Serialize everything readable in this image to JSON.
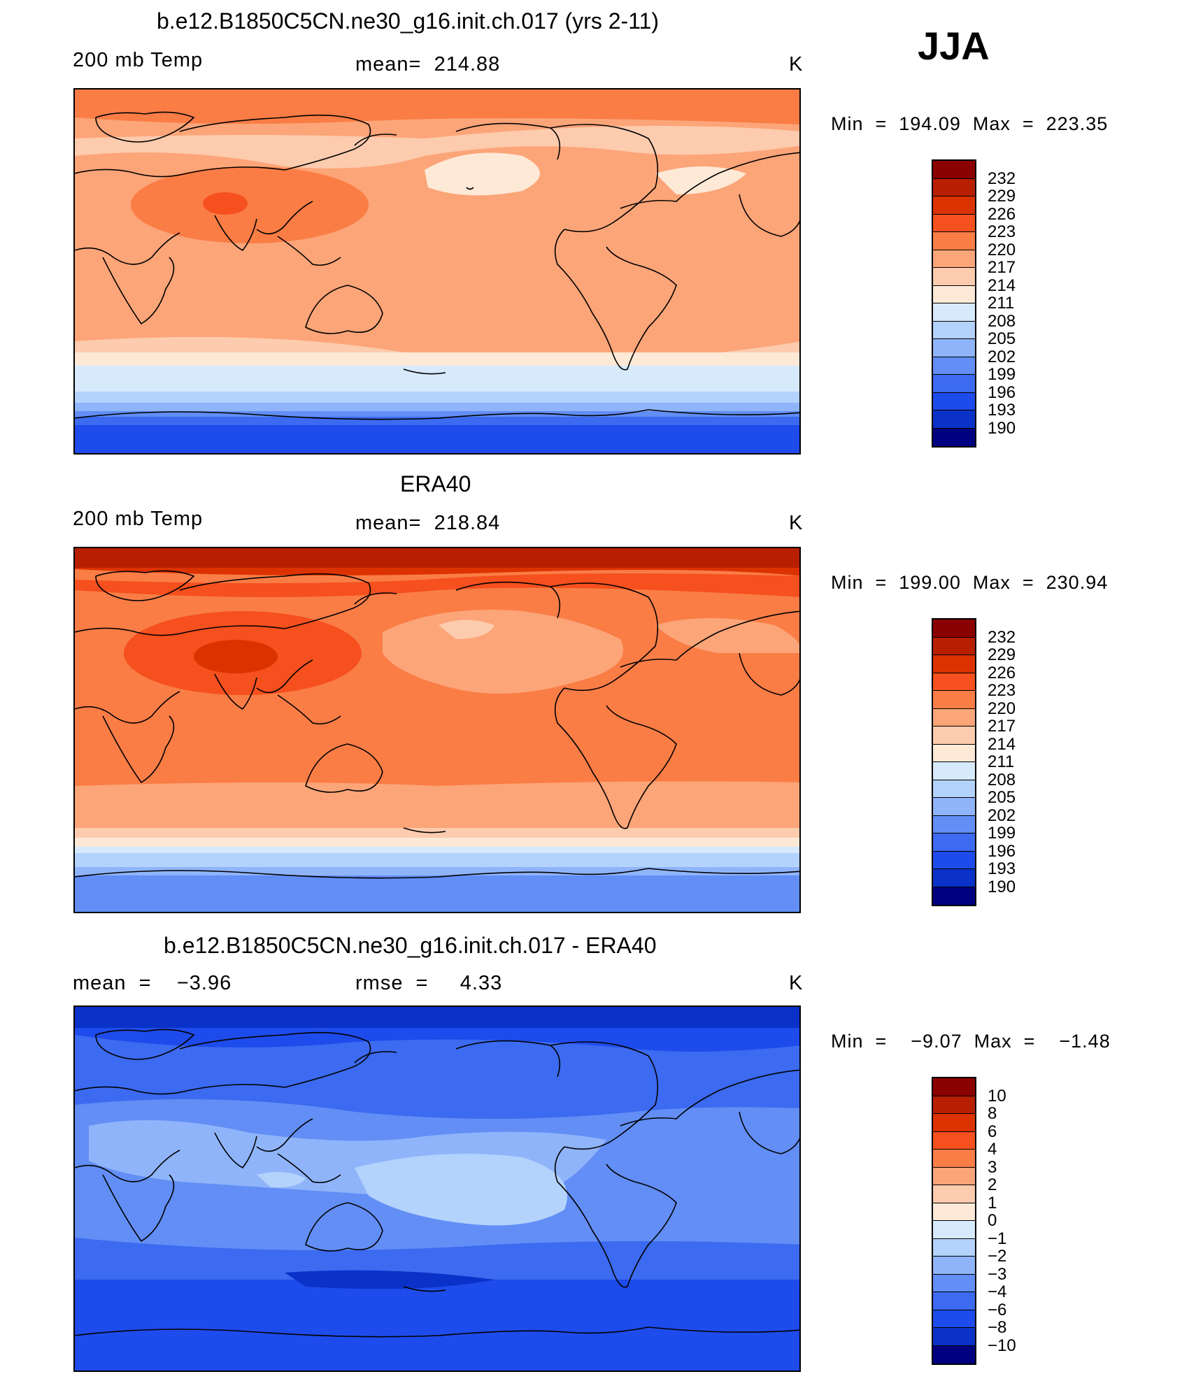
{
  "season": "JJA",
  "panels": [
    {
      "id": "model",
      "title": "b.e12.B1850C5CN.ne30_g16.init.ch.017 (yrs 2-11)",
      "left_label": "200 mb Temp",
      "center_label": "mean=  214.88",
      "right_label": "K",
      "minmax": "Min  =  194.09  Max  =  223.35",
      "colorbar": {
        "colors": [
          "#8b0000",
          "#b81f00",
          "#dc3200",
          "#f5501e",
          "#fa7d46",
          "#fca578",
          "#fdcbae",
          "#fee9d7",
          "#d6eafc",
          "#b3d2fc",
          "#8fb4fa",
          "#628ef5",
          "#3c6af0",
          "#1e4beb",
          "#0a32c8",
          "#000080"
        ],
        "labels": [
          "232",
          "229",
          "226",
          "223",
          "220",
          "217",
          "214",
          "211",
          "208",
          "205",
          "202",
          "199",
          "196",
          "193",
          "190"
        ]
      }
    },
    {
      "id": "obs",
      "title": "ERA40",
      "left_label": "200 mb Temp",
      "center_label": "mean=  218.84",
      "right_label": "K",
      "minmax": "Min  =  199.00  Max  =  230.94",
      "colorbar": {
        "colors": [
          "#8b0000",
          "#b81f00",
          "#dc3200",
          "#f5501e",
          "#fa7d46",
          "#fca578",
          "#fdcbae",
          "#fee9d7",
          "#d6eafc",
          "#b3d2fc",
          "#8fb4fa",
          "#628ef5",
          "#3c6af0",
          "#1e4beb",
          "#0a32c8",
          "#000080"
        ],
        "labels": [
          "232",
          "229",
          "226",
          "223",
          "220",
          "217",
          "214",
          "211",
          "208",
          "205",
          "202",
          "199",
          "196",
          "193",
          "190"
        ]
      }
    },
    {
      "id": "diff",
      "title": "b.e12.B1850C5CN.ne30_g16.init.ch.017 - ERA40",
      "left_label": "mean  =    −3.96",
      "center_label": "rmse  =     4.33",
      "right_label": "K",
      "minmax": "Min  =    −9.07  Max  =    −1.48",
      "colorbar": {
        "colors": [
          "#8b0000",
          "#b81f00",
          "#dc3200",
          "#f5501e",
          "#fa7d46",
          "#fca578",
          "#fdcbae",
          "#fee9d7",
          "#d6eafc",
          "#b3d2fc",
          "#8fb4fa",
          "#628ef5",
          "#3c6af0",
          "#1e4beb",
          "#0a32c8",
          "#000080"
        ],
        "labels": [
          "10",
          "8",
          "6",
          "4",
          "3",
          "2",
          "1",
          "0",
          "−1",
          "−2",
          "−3",
          "−4",
          "−6",
          "−8",
          "−10"
        ]
      }
    }
  ]
}
